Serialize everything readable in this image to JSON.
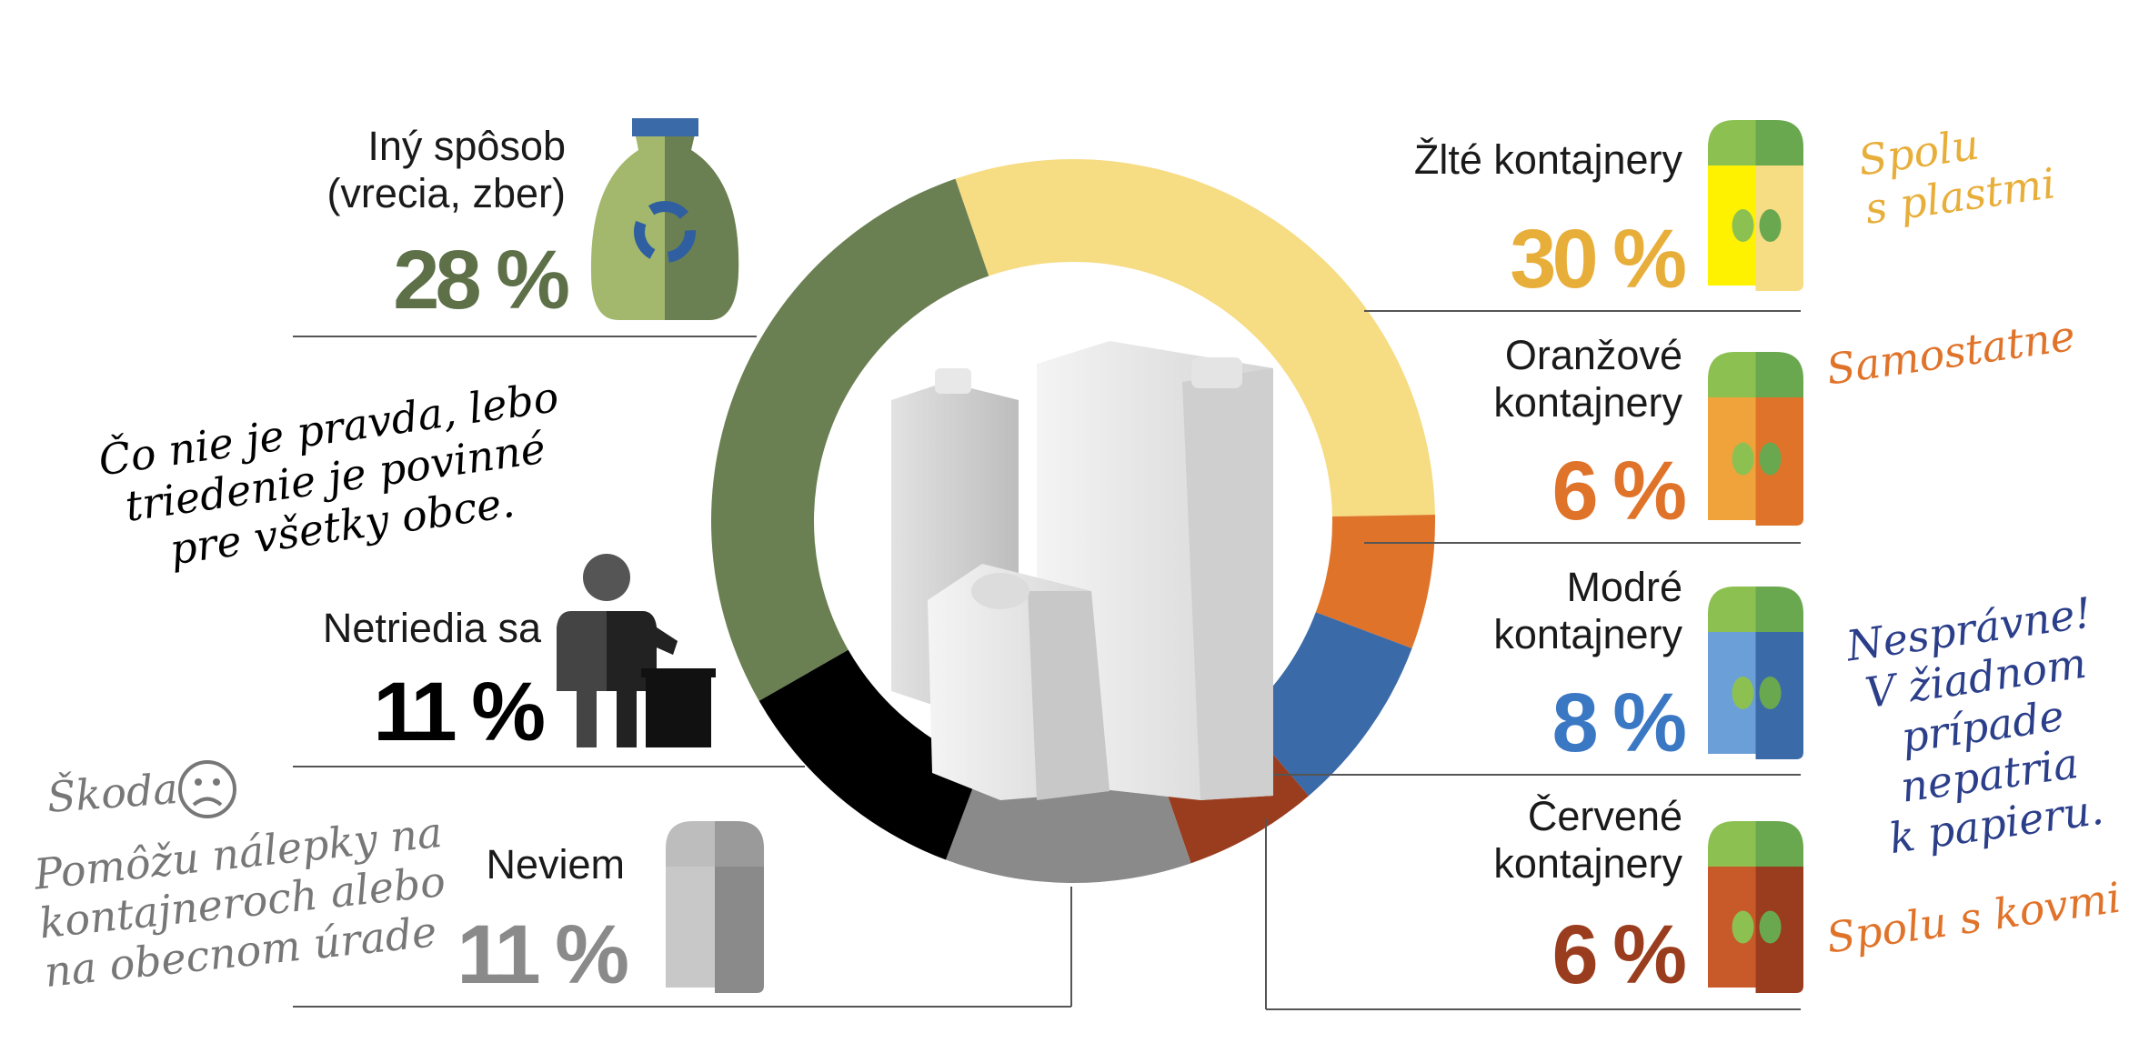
{
  "chart_data": {
    "type": "donut",
    "categories": [
      "Žlté kontajnery",
      "Oranžové\nkontajnery",
      "Modré\nkontajnery",
      "Červené\nkontajnery",
      "Neviem",
      "Netriedia sa",
      "Iný spôsob\n(vrecia, zber)"
    ],
    "values": [
      30,
      6,
      8,
      6,
      11,
      11,
      28
    ],
    "value_labels": [
      "30 %",
      "6 %",
      "8 %",
      "6 %",
      "11 %",
      "11 %",
      "28 %"
    ],
    "colors": [
      "#f6dc82",
      "#e0732a",
      "#3b6aa8",
      "#9a3d1e",
      "#8a8a8a",
      "#000000",
      "#6a7f52"
    ],
    "label_colors": [
      "#e8ae3a",
      "#e0732a",
      "#3b78c4",
      "#9a3d1e",
      "#8a8a8a",
      "#000000",
      "#5d7048"
    ],
    "annotations": [
      {
        "text": "Spolu\ns plastmi",
        "color": "#e8ae3a"
      },
      {
        "text": "Samostatne",
        "color": "#e0732a"
      },
      {
        "text": "Nesprávne!\nV žiadnom\nprípade nepatria\nk papieru.",
        "color": "#2b3e8a"
      },
      {
        "text": "Spolu s kovmi",
        "color": "#e0732a"
      },
      {
        "text": "Čo nie je pravda, lebo\ntriedenie je povinné\npre všetky obce.",
        "color": "#000000"
      },
      {
        "text": "Škoda",
        "color": "#777777"
      },
      {
        "text": "Pomôžu nálepky na\nkontajneroch alebo\nna obecnom úrade",
        "color": "#777777"
      }
    ]
  }
}
